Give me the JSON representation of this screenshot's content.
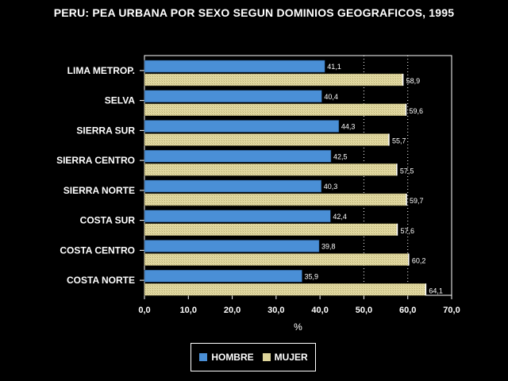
{
  "chart_data": {
    "type": "bar",
    "orientation": "horizontal",
    "title": "PERU: PEA URBANA POR SEXO SEGUN DOMINIOS GEOGRAFICOS, 1995",
    "xlabel": "%",
    "ylabel": "",
    "xlim": [
      0,
      70
    ],
    "xticks": [
      "0,0",
      "10,0",
      "20,0",
      "30,0",
      "40,0",
      "50,0",
      "60,0",
      "70,0"
    ],
    "grid": "dotted vertical at 50,0 and 60,0",
    "legend_position": "bottom-center",
    "categories": [
      "LIMA METROP.",
      "SELVA",
      "SIERRA SUR",
      "SIERRA CENTRO",
      "SIERRA NORTE",
      "COSTA SUR",
      "COSTA CENTRO",
      "COSTA NORTE"
    ],
    "series": [
      {
        "name": "HOMBRE",
        "color": "#4a8fd6",
        "values": [
          41.1,
          40.4,
          44.3,
          42.5,
          40.3,
          42.4,
          39.8,
          35.9
        ],
        "labels": [
          "41,1",
          "40,4",
          "44,3",
          "42,5",
          "40,3",
          "42,4",
          "39,8",
          "35,9"
        ]
      },
      {
        "name": "MUJER",
        "color": "#ddd49a",
        "values": [
          58.9,
          59.6,
          55.7,
          57.5,
          59.7,
          57.6,
          60.2,
          64.1
        ],
        "labels": [
          "58,9",
          "59,6",
          "55,7",
          "57,5",
          "59,7",
          "57,6",
          "60,2",
          "64,1"
        ]
      }
    ]
  }
}
